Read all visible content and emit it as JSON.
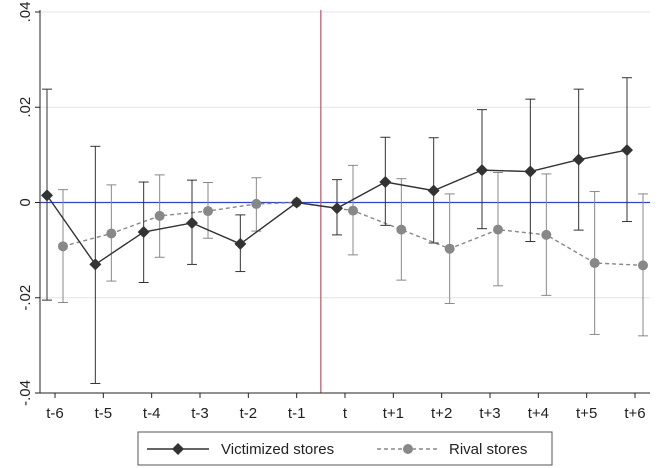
{
  "chart_data": {
    "type": "line",
    "title": "",
    "xlabel": "",
    "ylabel": "",
    "categories": [
      "t-6",
      "t-5",
      "t-4",
      "t-3",
      "t-2",
      "t-1",
      "t",
      "t+1",
      "t+2",
      "t+3",
      "t+4",
      "t+5",
      "t+6"
    ],
    "ylim": [
      -0.04,
      0.04
    ],
    "yticks": [
      -0.04,
      -0.02,
      0,
      0.02,
      0.04
    ],
    "ytick_labels": [
      "-.04",
      "-.02",
      "0",
      ".02",
      ".04"
    ],
    "grid": true,
    "zero_line": {
      "y": 0,
      "color": "#3344cc"
    },
    "event_line": {
      "after_category": "t-1",
      "color": "#c06070"
    },
    "legend_position": "bottom",
    "series": [
      {
        "name": "Victimized stores",
        "color": "#333333",
        "line_style": "solid",
        "marker": "diamond",
        "values": [
          0.0015,
          -0.013,
          -0.0062,
          -0.0043,
          -0.0087,
          0.0,
          -0.0012,
          0.0043,
          0.0025,
          0.0068,
          0.0065,
          0.009,
          0.011
        ],
        "ci_low": [
          -0.0205,
          -0.038,
          -0.0168,
          -0.013,
          -0.0145,
          0.0,
          -0.0068,
          -0.0048,
          -0.0085,
          -0.0055,
          -0.0082,
          -0.0058,
          -0.004
        ],
        "ci_high": [
          0.0238,
          0.0118,
          0.0043,
          0.0047,
          -0.0026,
          0.0,
          0.0048,
          0.0137,
          0.0136,
          0.0195,
          0.0217,
          0.0238,
          0.0262
        ]
      },
      {
        "name": "Rival stores",
        "color": "#888888",
        "line_style": "dashed",
        "marker": "circle",
        "values": [
          -0.0092,
          -0.0065,
          -0.0028,
          -0.0018,
          -0.0003,
          0.0,
          -0.0017,
          -0.0057,
          -0.0097,
          -0.0057,
          -0.0068,
          -0.0127,
          -0.0132
        ],
        "ci_low": [
          -0.021,
          -0.0165,
          -0.0115,
          -0.0075,
          -0.006,
          0.0,
          -0.011,
          -0.0163,
          -0.0212,
          -0.0175,
          -0.0195,
          -0.0277,
          -0.028
        ],
        "ci_high": [
          0.0027,
          0.0037,
          0.0058,
          0.0042,
          0.0052,
          0.0,
          0.0078,
          0.005,
          0.0018,
          0.0063,
          0.006,
          0.0023,
          0.0018
        ]
      }
    ]
  }
}
